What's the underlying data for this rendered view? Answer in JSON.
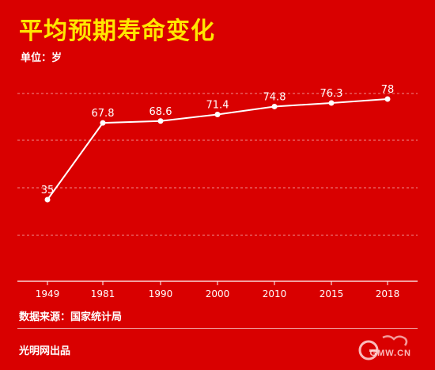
{
  "header": {
    "title": "平均预期寿命变化",
    "unit": "单位：岁"
  },
  "footer": {
    "source": "数据来源：国家统计局",
    "publisher": "光明网出品",
    "logo_text": "GMW.CN"
  },
  "colors": {
    "background": "#d90000",
    "title": "#ffe600",
    "line": "#ffffff"
  },
  "chart_data": {
    "type": "line",
    "categories": [
      "1949",
      "1981",
      "1990",
      "2000",
      "2010",
      "2015",
      "2018"
    ],
    "values": [
      35,
      67.8,
      68.6,
      71.4,
      74.8,
      76.3,
      78
    ],
    "data_labels": [
      "35",
      "67.8",
      "68.6",
      "71.4",
      "74.8",
      "76.3",
      "78"
    ],
    "xlabel": "",
    "ylabel": "",
    "grid": "horizontal dashed",
    "legend": "none"
  }
}
